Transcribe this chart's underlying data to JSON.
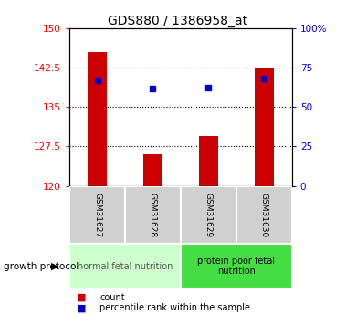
{
  "title": "GDS880 / 1386958_at",
  "samples": [
    "GSM31627",
    "GSM31628",
    "GSM31629",
    "GSM31630"
  ],
  "bar_values": [
    145.5,
    126.0,
    129.5,
    142.5
  ],
  "percentile_values": [
    67.0,
    62.0,
    62.5,
    68.0
  ],
  "ylim_left": [
    120,
    150
  ],
  "ylim_right": [
    0,
    100
  ],
  "yticks_left": [
    120,
    127.5,
    135,
    142.5,
    150
  ],
  "yticks_right": [
    0,
    25,
    50,
    75,
    100
  ],
  "ytick_labels_right": [
    "0",
    "25",
    "50",
    "75",
    "100%"
  ],
  "bar_color": "#cc0000",
  "percentile_color": "#0000cc",
  "group1_label": "normal fetal nutrition",
  "group2_label": "protein poor fetal\nnutrition",
  "group1_color": "#ccffcc",
  "group2_color": "#44dd44",
  "growth_protocol_label": "growth protocol",
  "legend_count_label": "count",
  "legend_percentile_label": "percentile rank within the sample",
  "title_fontsize": 10,
  "tick_fontsize": 7.5,
  "sample_fontsize": 6.5,
  "group_fontsize": 7,
  "legend_fontsize": 7,
  "bar_width": 0.35
}
